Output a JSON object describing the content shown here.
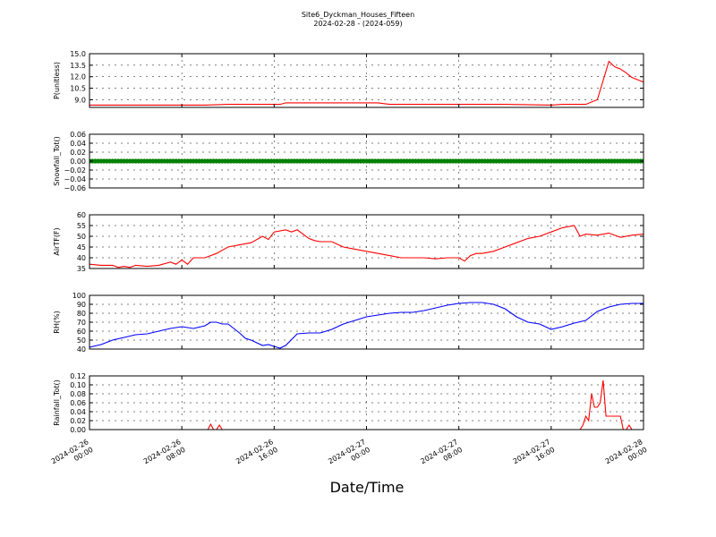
{
  "title": "Site6_Dyckman_Houses_Fifteen",
  "subtitle": "2024-02-28 - (2024-059)",
  "xlabel": "Date/Time",
  "chart_data": {
    "type": "line",
    "x_ticks": [
      {
        "line1": "2024-02-26",
        "line2": "00:00",
        "hour": 0
      },
      {
        "line1": "2024-02-26",
        "line2": "08:00",
        "hour": 8
      },
      {
        "line1": "2024-02-26",
        "line2": "16:00",
        "hour": 16
      },
      {
        "line1": "2024-02-27",
        "line2": "00:00",
        "hour": 24
      },
      {
        "line1": "2024-02-27",
        "line2": "08:00",
        "hour": 32
      },
      {
        "line1": "2024-02-27",
        "line2": "16:00",
        "hour": 40
      },
      {
        "line1": "2024-02-28",
        "line2": "00:00",
        "hour": 48
      }
    ],
    "xlim": [
      0,
      48
    ],
    "grid": true,
    "panels": [
      {
        "ylabel": "P(unitless)",
        "ylim": [
          8.0,
          15.0
        ],
        "yticks": [
          "15.0",
          "13.5",
          "12.0",
          "10.5",
          "9.0"
        ],
        "ytick_values": [
          15.0,
          13.5,
          12.0,
          10.5,
          9.0
        ],
        "color": "#ff0000",
        "series": {
          "x": [
            0,
            4,
            8,
            10,
            12,
            14,
            16,
            16.5,
            17,
            20,
            24,
            25,
            26,
            28,
            32,
            36,
            40,
            41,
            42,
            43,
            44,
            44.5,
            45,
            45.5,
            46,
            46.5,
            47,
            47.5,
            48
          ],
          "y": [
            8.3,
            8.3,
            8.3,
            8.3,
            8.4,
            8.4,
            8.4,
            8.4,
            8.6,
            8.6,
            8.6,
            8.6,
            8.4,
            8.4,
            8.4,
            8.4,
            8.3,
            8.4,
            8.4,
            8.4,
            9.0,
            11.5,
            14.0,
            13.3,
            13.0,
            12.5,
            11.9,
            11.6,
            11.3
          ]
        }
      },
      {
        "ylabel": "Snowfall_Tot()",
        "ylim": [
          -0.06,
          0.06
        ],
        "yticks": [
          "0.06",
          "0.04",
          "0.02",
          "0.00",
          "−0.02",
          "−0.04",
          "−0.06"
        ],
        "ytick_values": [
          0.06,
          0.04,
          0.02,
          0.0,
          -0.02,
          -0.04,
          -0.06
        ],
        "color": "#008000",
        "style": "markers",
        "series": {
          "x_start": 0,
          "x_end": 48,
          "step": 0.25,
          "value": 0.0
        }
      },
      {
        "ylabel": "AirTF(F)",
        "ylim": [
          35,
          60
        ],
        "yticks": [
          "60",
          "55",
          "50",
          "45",
          "40",
          "35"
        ],
        "ytick_values": [
          60,
          55,
          50,
          45,
          40,
          35
        ],
        "color": "#ff0000",
        "series": {
          "x": [
            0,
            1,
            2,
            2.5,
            3,
            3.5,
            4,
            5,
            6,
            7,
            7.5,
            8,
            8.5,
            9,
            10,
            11,
            12,
            13,
            14,
            15,
            15.5,
            16,
            17,
            17.5,
            18,
            19,
            19.5,
            20,
            21,
            22,
            23,
            24,
            25,
            26,
            27,
            28,
            29,
            30,
            31,
            32,
            32.5,
            33,
            33.5,
            34,
            35,
            36,
            37,
            38,
            39,
            40,
            41,
            42,
            42.5,
            43,
            44,
            45,
            46,
            47,
            48
          ],
          "y": [
            37,
            36.5,
            36.5,
            35.5,
            36,
            35.5,
            36.5,
            36,
            36.5,
            38,
            37,
            39,
            37,
            40,
            40,
            42,
            45,
            46,
            47,
            50,
            48.5,
            52,
            53,
            52,
            53,
            49,
            48,
            47.5,
            47.5,
            45,
            44,
            43,
            42,
            41,
            40,
            40,
            40,
            39.5,
            40,
            40,
            38.5,
            41,
            42,
            42,
            43,
            45,
            47,
            49,
            50,
            52,
            54,
            55,
            50,
            51,
            50.5,
            51.5,
            49.5,
            50.5,
            51
          ]
        }
      },
      {
        "ylabel": "RH(%)",
        "ylim": [
          40,
          100
        ],
        "yticks": [
          "100",
          "90",
          "80",
          "70",
          "60",
          "50",
          "40"
        ],
        "ytick_values": [
          100,
          90,
          80,
          70,
          60,
          50,
          40
        ],
        "color": "#0000ff",
        "series": {
          "x": [
            0,
            1,
            2,
            3,
            4,
            5,
            6,
            7,
            8,
            9,
            10,
            10.5,
            11,
            11.5,
            12,
            13,
            13.5,
            14,
            15,
            15.5,
            16,
            16.5,
            17,
            18,
            19,
            20,
            21,
            22,
            23,
            24,
            25,
            26,
            27,
            28,
            29,
            30,
            31,
            32,
            33,
            34,
            35,
            36,
            37,
            38,
            39,
            40,
            41,
            42,
            43,
            44,
            45,
            46,
            47,
            48
          ],
          "y": [
            42,
            45,
            50,
            53,
            56,
            57,
            60,
            63,
            65,
            63,
            66,
            70,
            70,
            68,
            68,
            58,
            52,
            50,
            44,
            45,
            43,
            41,
            44,
            57,
            58,
            58,
            62,
            68,
            72,
            76,
            78,
            80,
            81,
            81,
            83,
            86,
            89,
            91,
            92,
            92,
            90,
            85,
            76,
            70,
            68,
            62,
            65,
            69,
            72,
            82,
            87,
            90,
            91,
            91
          ]
        }
      },
      {
        "ylabel": "Rainfall_Tot()",
        "ylim": [
          0.0,
          0.12
        ],
        "yticks": [
          "0.12",
          "0.10",
          "0.08",
          "0.06",
          "0.04",
          "0.02",
          "0.00"
        ],
        "ytick_values": [
          0.12,
          0.1,
          0.08,
          0.06,
          0.04,
          0.02,
          0.0
        ],
        "color": "#ff0000",
        "series": {
          "x": [
            0,
            10,
            10.25,
            10.5,
            10.75,
            11,
            11.25,
            11.5,
            21,
            42,
            42.5,
            42.75,
            43,
            43.25,
            43.5,
            43.75,
            44,
            44.25,
            44.5,
            44.75,
            45,
            45.5,
            46,
            46.25,
            46.5,
            46.75,
            47,
            47.25,
            48
          ],
          "y": [
            0,
            0,
            0,
            0.012,
            0,
            0,
            0.01,
            0,
            0,
            0,
            0,
            0.01,
            0.03,
            0.02,
            0.08,
            0.05,
            0.05,
            0.06,
            0.11,
            0.03,
            0.03,
            0.03,
            0.03,
            0,
            0,
            0.01,
            0,
            0,
            0
          ]
        }
      }
    ]
  }
}
